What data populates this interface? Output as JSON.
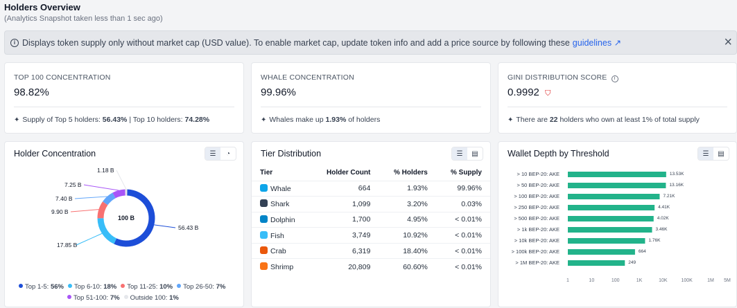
{
  "header": {
    "title": "Holders Overview",
    "subtitle": "(Analytics Snapshot taken less than 1 sec ago)"
  },
  "banner": {
    "text": "Displays token supply only without market cap (USD value). To enable market cap, update token info and add a price source by following these",
    "link": "guidelines ↗",
    "close": "×"
  },
  "stats": [
    {
      "label": "TOP 100 CONCENTRATION",
      "value": "98.82%",
      "foot_parts": [
        "Supply of Top 5 holders: ",
        "56.43%",
        " | Top 10 holders: ",
        "74.28%"
      ]
    },
    {
      "label": "WHALE CONCENTRATION",
      "value": "99.96%",
      "foot_parts": [
        "Whales make up ",
        "1.93%",
        " of holders"
      ]
    },
    {
      "label": "GINI DISTRIBUTION SCORE",
      "value": "0.9992",
      "foot_parts": [
        "There are ",
        "22",
        " holders who own at least 1% of total supply"
      ]
    }
  ],
  "holder_concentration": {
    "title": "Holder Concentration",
    "center_label": "100 B",
    "slices": [
      {
        "name": "Top 1-5",
        "value": 56.43,
        "label": "56.43 B",
        "color": "#1d4ed8"
      },
      {
        "name": "Top 6-10",
        "value": 17.85,
        "label": "17.85 B",
        "color": "#38bdf8"
      },
      {
        "name": "Top 11-25",
        "value": 9.9,
        "label": "9.90 B",
        "color": "#f87171"
      },
      {
        "name": "Top 26-50",
        "value": 7.4,
        "label": "7.40 B",
        "color": "#60a5fa"
      },
      {
        "name": "Top 51-100",
        "value": 7.25,
        "label": "7.25 B",
        "color": "#a855f7"
      },
      {
        "name": "Outside 100",
        "value": 1.18,
        "label": "1.18 B",
        "color": "#e5e7eb"
      }
    ],
    "legend_row1": [
      {
        "name": "Top 1-5:",
        "pct": "56%",
        "color": "#1d4ed8"
      },
      {
        "name": "Top 6-10:",
        "pct": "18%",
        "color": "#38bdf8"
      },
      {
        "name": "Top 11-25:",
        "pct": "10%",
        "color": "#f87171"
      },
      {
        "name": "Top 26-50:",
        "pct": "7%",
        "color": "#60a5fa"
      }
    ],
    "legend_row2": [
      {
        "name": "Top 51-100:",
        "pct": "7%",
        "color": "#a855f7"
      },
      {
        "name": "Outside 100:",
        "pct": "1%",
        "color": "#e5e7eb"
      }
    ]
  },
  "tier_distribution": {
    "title": "Tier Distribution",
    "headers": [
      "Tier",
      "Holder Count",
      "% Holders",
      "% Supply"
    ],
    "rows": [
      {
        "tier": "Whale",
        "count": "664",
        "holders": "1.93%",
        "supply": "99.96%",
        "color": "#0ea5e9"
      },
      {
        "tier": "Shark",
        "count": "1,099",
        "holders": "3.20%",
        "supply": "0.03%",
        "color": "#334155"
      },
      {
        "tier": "Dolphin",
        "count": "1,700",
        "holders": "4.95%",
        "supply": "< 0.01%",
        "color": "#0284c7"
      },
      {
        "tier": "Fish",
        "count": "3,749",
        "holders": "10.92%",
        "supply": "< 0.01%",
        "color": "#38bdf8"
      },
      {
        "tier": "Crab",
        "count": "6,319",
        "holders": "18.40%",
        "supply": "< 0.01%",
        "color": "#ea580c"
      },
      {
        "tier": "Shrimp",
        "count": "20,809",
        "holders": "60.60%",
        "supply": "< 0.01%",
        "color": "#f97316"
      }
    ]
  },
  "chart_data": {
    "type": "bar",
    "title": "Wallet Depth by Threshold",
    "categories": [
      "> 10 BEP-20: AKE",
      "> 50 BEP-20: AKE",
      "> 100 BEP-20: AKE",
      "> 250 BEP-20: AKE",
      "> 500 BEP-20: AKE",
      "> 1k BEP-20: AKE",
      "> 10k BEP-20: AKE",
      "> 100k BEP-20: AKE",
      "> 1M BEP-20: AKE"
    ],
    "values": [
      13530,
      13160,
      7210,
      4410,
      4020,
      3460,
      1760,
      664,
      249
    ],
    "value_labels": [
      "13.53K",
      "13.16K",
      "7.21K",
      "4.41K",
      "4.02K",
      "3.46K",
      "1.76K",
      "664",
      "249"
    ],
    "xscale": "log",
    "xticks": [
      "1",
      "10",
      "100",
      "1K",
      "10K",
      "100K",
      "1M",
      "5M"
    ],
    "xtick_values": [
      1,
      10,
      100,
      1000,
      10000,
      100000,
      1000000,
      5000000
    ],
    "orientation": "horizontal",
    "color": "#22b38a"
  }
}
